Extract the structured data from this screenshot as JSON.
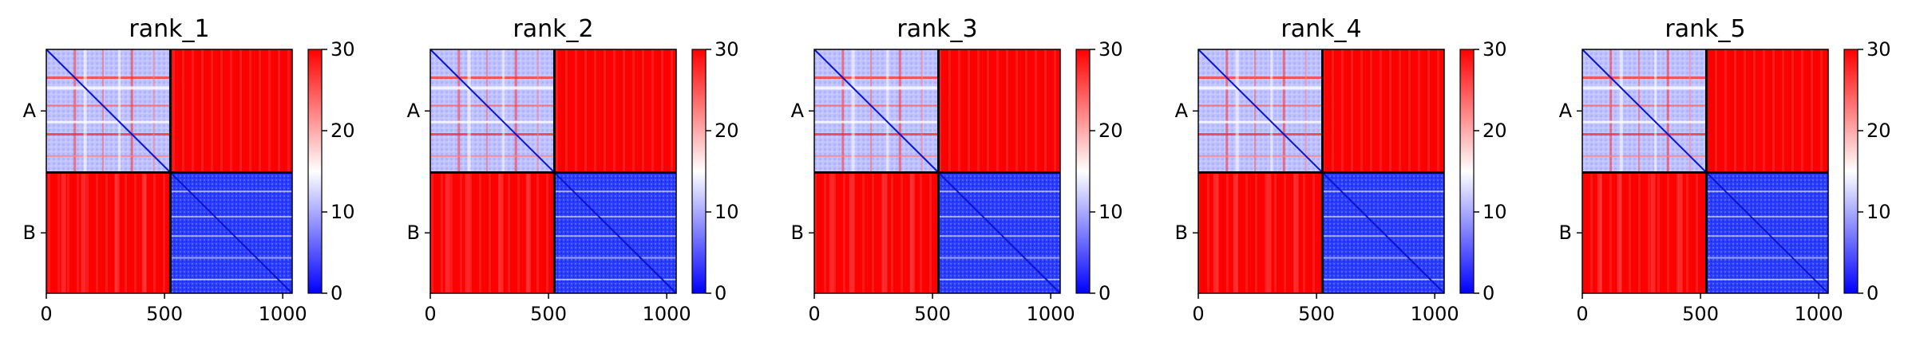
{
  "chart_data": [
    {
      "type": "heatmap",
      "title": "rank_1",
      "chains": [
        "A",
        "B"
      ],
      "chain_boundary": 525,
      "x_ticks": [
        "0",
        "500",
        "1000"
      ],
      "xlim": [
        0,
        1040
      ],
      "colorbar": {
        "ticks": [
          "0",
          "10",
          "20",
          "30"
        ],
        "range": [
          0,
          30
        ],
        "colormap": "bwr",
        "low_color": "#0000ff",
        "mid_color": "#ffffff",
        "high_color": "#ff0000"
      },
      "block_values": {
        "A-A": 8,
        "A-B": 29,
        "B-A": 29,
        "B-B": 4
      }
    },
    {
      "type": "heatmap",
      "title": "rank_2",
      "chains": [
        "A",
        "B"
      ],
      "chain_boundary": 525,
      "x_ticks": [
        "0",
        "500",
        "1000"
      ],
      "xlim": [
        0,
        1040
      ],
      "colorbar": {
        "ticks": [
          "0",
          "10",
          "20",
          "30"
        ],
        "range": [
          0,
          30
        ],
        "colormap": "bwr",
        "low_color": "#0000ff",
        "mid_color": "#ffffff",
        "high_color": "#ff0000"
      },
      "block_values": {
        "A-A": 8,
        "A-B": 29,
        "B-A": 29,
        "B-B": 4
      }
    },
    {
      "type": "heatmap",
      "title": "rank_3",
      "chains": [
        "A",
        "B"
      ],
      "chain_boundary": 525,
      "x_ticks": [
        "0",
        "500",
        "1000"
      ],
      "xlim": [
        0,
        1040
      ],
      "colorbar": {
        "ticks": [
          "0",
          "10",
          "20",
          "30"
        ],
        "range": [
          0,
          30
        ],
        "colormap": "bwr",
        "low_color": "#0000ff",
        "mid_color": "#ffffff",
        "high_color": "#ff0000"
      },
      "block_values": {
        "A-A": 8,
        "A-B": 29,
        "B-A": 29,
        "B-B": 4
      }
    },
    {
      "type": "heatmap",
      "title": "rank_4",
      "chains": [
        "A",
        "B"
      ],
      "chain_boundary": 525,
      "x_ticks": [
        "0",
        "500",
        "1000"
      ],
      "xlim": [
        0,
        1040
      ],
      "colorbar": {
        "ticks": [
          "0",
          "10",
          "20",
          "30"
        ],
        "range": [
          0,
          30
        ],
        "colormap": "bwr",
        "low_color": "#0000ff",
        "mid_color": "#ffffff",
        "high_color": "#ff0000"
      },
      "block_values": {
        "A-A": 8,
        "A-B": 29,
        "B-A": 29,
        "B-B": 4
      }
    },
    {
      "type": "heatmap",
      "title": "rank_5",
      "chains": [
        "A",
        "B"
      ],
      "chain_boundary": 525,
      "x_ticks": [
        "0",
        "500",
        "1000"
      ],
      "xlim": [
        0,
        1040
      ],
      "colorbar": {
        "ticks": [
          "0",
          "10",
          "20",
          "30"
        ],
        "range": [
          0,
          30
        ],
        "colormap": "bwr",
        "low_color": "#0000ff",
        "mid_color": "#ffffff",
        "high_color": "#ff0000"
      },
      "block_values": {
        "A-A": 8,
        "A-B": 29,
        "B-A": 29,
        "B-B": 4
      }
    }
  ]
}
